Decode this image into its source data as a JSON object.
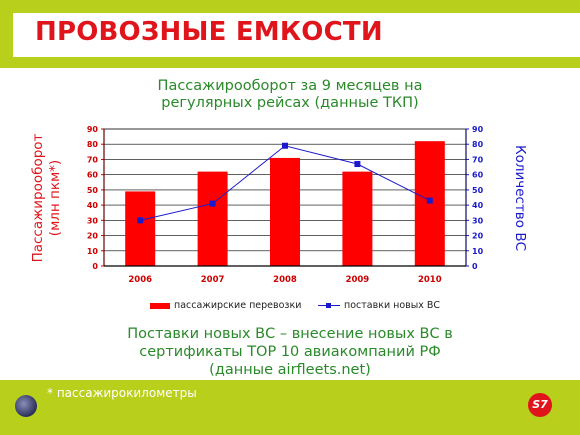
{
  "header": {
    "title": "ПРОВОЗНЫЕ ЕМКОСТИ"
  },
  "chart_title": {
    "line1": "Пассажирооборот за 9 месяцев на",
    "line2": "регулярных рейсах (данные ТКП)"
  },
  "axes": {
    "left_label_line1": "Пассажирооборот",
    "left_label_line2": "(млн пкм*)",
    "right_label": "Количество ВС"
  },
  "chart_data": {
    "type": "bar",
    "categories": [
      "2006",
      "2007",
      "2008",
      "2009",
      "2010"
    ],
    "series": [
      {
        "name": "пассажирские перевозки",
        "type": "bar",
        "axis": "left",
        "color": "#ff0000",
        "values": [
          49,
          62,
          71,
          62,
          82
        ]
      },
      {
        "name": "поставки новых ВС",
        "type": "line",
        "axis": "right",
        "color": "#1a1acc",
        "values": [
          30,
          41,
          79,
          67,
          43
        ]
      }
    ],
    "ylim": [
      0,
      90
    ],
    "y_ticks": [
      0,
      10,
      20,
      30,
      40,
      50,
      60,
      70,
      80,
      90
    ],
    "y2lim": [
      0,
      90
    ],
    "y2_ticks": [
      0,
      10,
      20,
      30,
      40,
      50,
      60,
      70,
      80,
      90
    ],
    "grid": true,
    "legend": "bottom"
  },
  "bottom_text": {
    "line1": "Поставки новых ВС – внесение новых ВС в",
    "line2": "сертификаты ТОР 10 авиакомпаний РФ",
    "line3": "(данные airfleets.net)"
  },
  "footer": {
    "footnote": "* пассажирокилометры",
    "logo_text": "S7"
  }
}
